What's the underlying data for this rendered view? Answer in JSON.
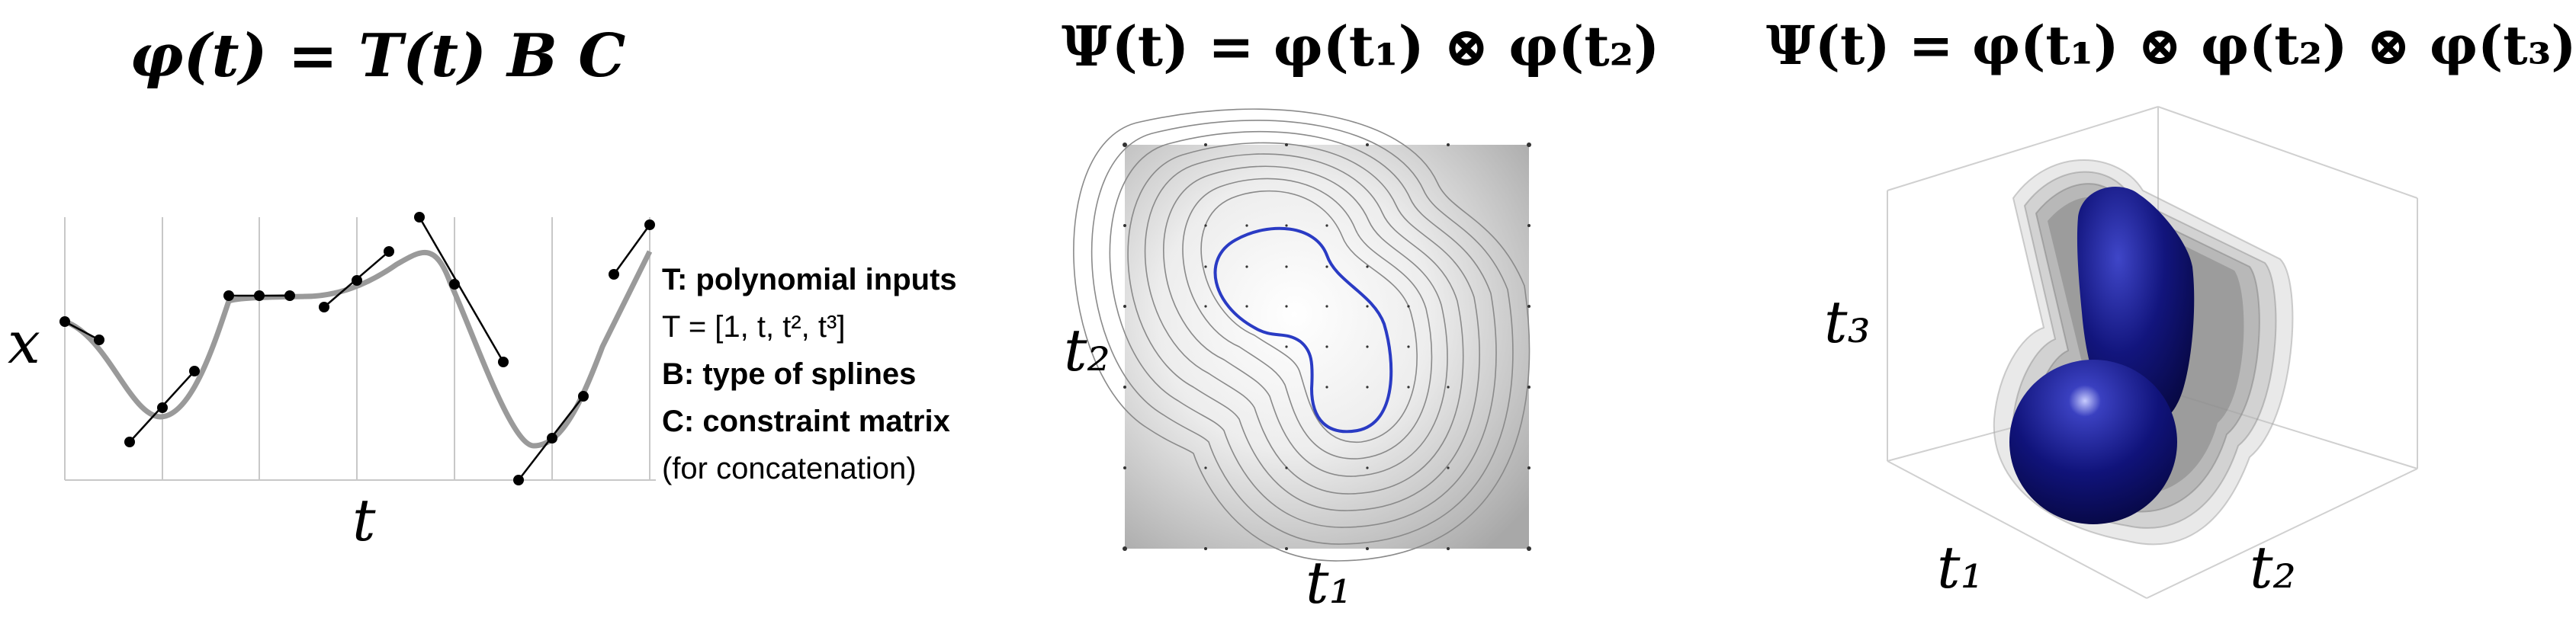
{
  "equations": {
    "eq1": "φ(t) = T(t) B C",
    "eq2": "Ψ(t) = φ(t₁) ⊗ φ(t₂)",
    "eq3": "Ψ(t) = φ(t₁) ⊗ φ(t₂) ⊗ φ(t₃)"
  },
  "panel1": {
    "y_label": "x",
    "x_label": "t",
    "legend": [
      {
        "text": "T: polynomial inputs",
        "bold": true
      },
      {
        "text": "T = [1, t, t², t³]",
        "bold": false
      },
      {
        "text": "B: type of splines",
        "bold": true
      },
      {
        "text": "C: constraint matrix",
        "bold": true
      },
      {
        "text": "(for concatenation)",
        "bold": false
      }
    ]
  },
  "panel2": {
    "x_label": "t₁",
    "y_label": "t₂"
  },
  "panel3": {
    "x_label": "t₁",
    "y_label": "t₃",
    "z_label": "t₂"
  },
  "colors": {
    "spline": "#9a9a9a",
    "contour_highlight": "#2a3bc4",
    "volume": "#0c0e6e"
  }
}
